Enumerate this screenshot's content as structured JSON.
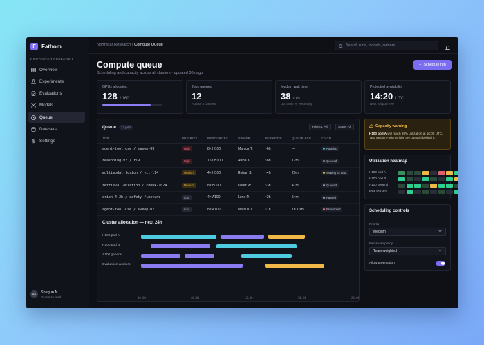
{
  "app": {
    "name": "Fathom",
    "logo_letter": "F",
    "org": "NORTHSTAR RESEARCH"
  },
  "sidebar": {
    "items": [
      {
        "label": "Overview",
        "icon": "grid-icon"
      },
      {
        "label": "Experiments",
        "icon": "flask-icon"
      },
      {
        "label": "Evaluations",
        "icon": "clipboard-check-icon"
      },
      {
        "label": "Models",
        "icon": "nodes-icon"
      },
      {
        "label": "Queue",
        "icon": "clock-icon",
        "active": true
      },
      {
        "label": "Datasets",
        "icon": "database-icon"
      },
      {
        "label": "Settings",
        "icon": "gear-icon"
      }
    ],
    "user": {
      "initials": "SN",
      "name": "Shegun N.",
      "role": "Research lead"
    }
  },
  "topbar": {
    "breadcrumb_parent": "Northstar Research",
    "breadcrumb_sep": "/",
    "breadcrumb_current": "Compute Queue",
    "search_placeholder": "Search runs, models, owners..."
  },
  "header": {
    "title": "Compute queue",
    "subtitle": "Scheduling and capacity across all clusters · updated 30s ago",
    "primary_button": "Schedule run"
  },
  "stats": [
    {
      "label": "GPUs allocated",
      "value": "128",
      "unit": "/ 160",
      "progress": 0.8
    },
    {
      "label": "Jobs queued",
      "value": "12",
      "unit": "",
      "note": "Across 4 clusters"
    },
    {
      "label": "Median wait time",
      "value": "38",
      "unit": "min",
      "note": "Up 6 min vs yesterday"
    },
    {
      "label": "Projected availability",
      "value": "14:20",
      "unit": "UTC",
      "note": "Next full pod free"
    }
  ],
  "queue": {
    "title": "Queue",
    "count": "12 jobs",
    "filter_priority": "Priority: All",
    "filter_state": "State: All",
    "columns": [
      "JOB",
      "PRIORITY",
      "RESOURCES",
      "OWNER",
      "DURATION",
      "QUEUE AGE",
      "STATE"
    ],
    "rows": [
      {
        "job": "agent-tool-use / sweep-09",
        "priority": "High",
        "resources": "8× H100",
        "owner": "Marcus T.",
        "duration": "~6h",
        "age": "—",
        "state": "Running",
        "state_color": "#2bb6d8"
      },
      {
        "job": "reasoning-v3 / r19",
        "priority": "High",
        "resources": "16× H100",
        "owner": "Aisha K.",
        "duration": "~8h",
        "age": "12m",
        "state": "Queued",
        "state_color": "#9aa0ae"
      },
      {
        "job": "multimodal-fusion / vit-l14",
        "priority": "Medium",
        "resources": "4× H100",
        "owner": "Rohan S.",
        "duration": "~4h",
        "age": "29m",
        "state": "Waiting for data",
        "state_color": "#e9b34a"
      },
      {
        "job": "retrieval-ablation / chunk-1024",
        "priority": "Medium",
        "resources": "8× H100",
        "owner": "Deniz W.",
        "duration": "~3h",
        "age": "41m",
        "state": "Queued",
        "state_color": "#9aa0ae"
      },
      {
        "job": "orion-4.2b / safety-finetune",
        "priority": "Low",
        "resources": "4× A100",
        "owner": "Lena P.",
        "duration": "~2h",
        "age": "54m",
        "state": "Paused",
        "state_color": "#9aa0ae"
      },
      {
        "job": "agent-tool-use / sweep-07",
        "priority": "Low",
        "resources": "8× A100",
        "owner": "Marcus T.",
        "duration": "~7h",
        "age": "1h 10m",
        "state": "Preempted",
        "state_color": "#f0707e"
      }
    ]
  },
  "allocation": {
    "title": "Cluster allocation — next 24h",
    "lanes": [
      {
        "name": "H100 pod A",
        "segments": [
          {
            "start": 0,
            "end": 8.5,
            "color": "#4ecbe0"
          },
          {
            "start": 8.9,
            "end": 13.8,
            "color": "#8a7cf0"
          },
          {
            "start": 14.3,
            "end": 18.4,
            "color": "#f0b846"
          }
        ]
      },
      {
        "name": "H100 pod B",
        "segments": [
          {
            "start": 1.1,
            "end": 7.8,
            "color": "#8a7cf0"
          },
          {
            "start": 8.5,
            "end": 17.5,
            "color": "#4ecbe0"
          }
        ]
      },
      {
        "name": "A100 general",
        "segments": [
          {
            "start": 0,
            "end": 4.4,
            "color": "#8a7cf0"
          },
          {
            "start": 4.9,
            "end": 8.2,
            "color": "#8a7cf0"
          },
          {
            "start": 11.3,
            "end": 16.9,
            "color": "#4ecbe0"
          }
        ]
      },
      {
        "name": "Evaluation workers",
        "segments": [
          {
            "start": 0,
            "end": 11.4,
            "color": "#8a7cf0"
          },
          {
            "start": 13.9,
            "end": 20.6,
            "color": "#f0b846"
          }
        ]
      }
    ],
    "ticks": [
      "00:00",
      "06:00",
      "12:00",
      "18:00",
      "24:00"
    ]
  },
  "capacity_warning": {
    "title": "Capacity warning",
    "emphasis": "H100 pod A",
    "body": " will reach 98% utilization at 16:00 UTC. Two medium-priority jobs are queued behind it."
  },
  "heatmap": {
    "title": "Utilization heatmap",
    "rows": [
      {
        "name": "H100 pod A",
        "cells": [
          "#3a8f5c",
          "#2a4a3a",
          "#2a4a3a",
          "#f0b846",
          "#2a2e38",
          "#e0606e",
          "#f0b846",
          "#2ecf8e"
        ]
      },
      {
        "name": "H100 pod B",
        "cells": [
          "#2ecf8e",
          "#2a4a3a",
          "#2a2e38",
          "#2ecf8e",
          "#2a4a3a",
          "#2a2e38",
          "#2ecf8e",
          "#f0b846"
        ]
      },
      {
        "name": "A100 general",
        "cells": [
          "#2a4a3a",
          "#2ecf8e",
          "#2ecf8e",
          "#2a4a3a",
          "#f0b846",
          "#2ecf8e",
          "#2ecf8e",
          "#2a4a3a"
        ]
      },
      {
        "name": "Eval workers",
        "cells": [
          "#2a2e38",
          "#2ecf8e",
          "#2a2e38",
          "#2a4a3a",
          "#2a2e38",
          "#2a4a3a",
          "#2a2e38",
          "#2ecf8e"
        ]
      }
    ]
  },
  "controls": {
    "title": "Scheduling controls",
    "priority_label": "Priority",
    "priority_value": "Medium",
    "policy_label": "Fair-share policy",
    "policy_value": "Team-weighted",
    "preemption_label": "Allow preemption",
    "preemption_on": true
  },
  "colors": {
    "accent": "#7b6df1",
    "running": "#2bb6d8",
    "warning": "#f0b846",
    "danger": "#f0707e"
  }
}
